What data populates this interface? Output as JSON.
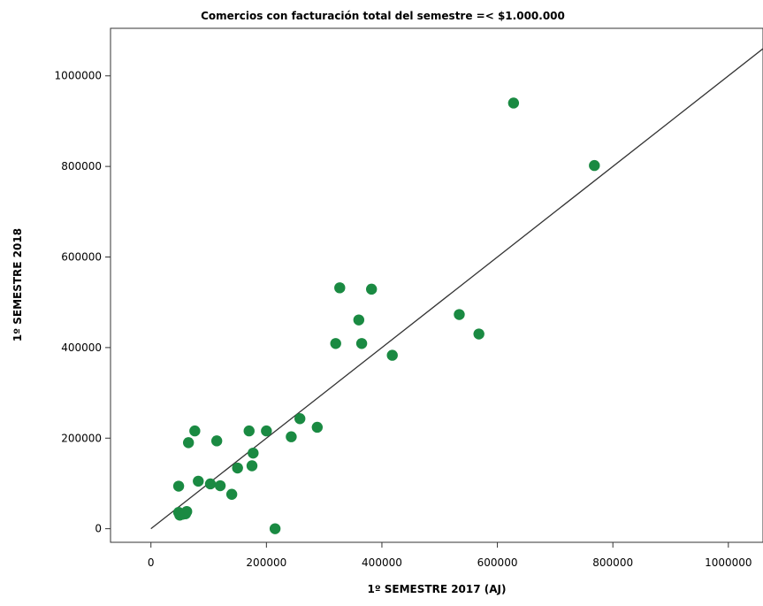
{
  "chart_data": {
    "type": "scatter",
    "title": "Comercios con facturación total del semestre =< $1.000.000",
    "xlabel": "1º SEMESTRE 2017 (AJ)",
    "ylabel": "1º SEMESTRE 2018",
    "xlim": [
      -70000,
      1060000
    ],
    "ylim": [
      -30000,
      1105000
    ],
    "xticks": [
      0,
      200000,
      400000,
      600000,
      800000,
      1000000
    ],
    "xtick_labels": [
      "0",
      "200000",
      "400000",
      "600000",
      "800000",
      "1000000"
    ],
    "yticks": [
      0,
      200000,
      400000,
      600000,
      800000,
      1000000
    ],
    "ytick_labels": [
      "0",
      "200000",
      "400000",
      "600000",
      "800000",
      "1000000"
    ],
    "grid": false,
    "marker_color": "#1a8a42",
    "line_color": "#333333",
    "fit_line": {
      "slope": 1.0,
      "intercept": 0
    },
    "points": [
      {
        "x": 48000,
        "y": 36000
      },
      {
        "x": 50000,
        "y": 30000
      },
      {
        "x": 55000,
        "y": 32000
      },
      {
        "x": 62000,
        "y": 38000
      },
      {
        "x": 60000,
        "y": 33000
      },
      {
        "x": 48000,
        "y": 94000
      },
      {
        "x": 82000,
        "y": 105000
      },
      {
        "x": 103000,
        "y": 99000
      },
      {
        "x": 120000,
        "y": 95000
      },
      {
        "x": 140000,
        "y": 76000
      },
      {
        "x": 65000,
        "y": 190000
      },
      {
        "x": 76000,
        "y": 216000
      },
      {
        "x": 114000,
        "y": 194000
      },
      {
        "x": 150000,
        "y": 134000
      },
      {
        "x": 170000,
        "y": 216000
      },
      {
        "x": 175000,
        "y": 139000
      },
      {
        "x": 177000,
        "y": 167000
      },
      {
        "x": 200000,
        "y": 216000
      },
      {
        "x": 215000,
        "y": 0
      },
      {
        "x": 243000,
        "y": 203000
      },
      {
        "x": 258000,
        "y": 243000
      },
      {
        "x": 288000,
        "y": 224000
      },
      {
        "x": 320000,
        "y": 409000
      },
      {
        "x": 327000,
        "y": 532000
      },
      {
        "x": 360000,
        "y": 461000
      },
      {
        "x": 365000,
        "y": 409000
      },
      {
        "x": 382000,
        "y": 529000
      },
      {
        "x": 418000,
        "y": 383000
      },
      {
        "x": 534000,
        "y": 473000
      },
      {
        "x": 568000,
        "y": 430000
      },
      {
        "x": 628000,
        "y": 940000
      },
      {
        "x": 768000,
        "y": 802000
      }
    ]
  }
}
